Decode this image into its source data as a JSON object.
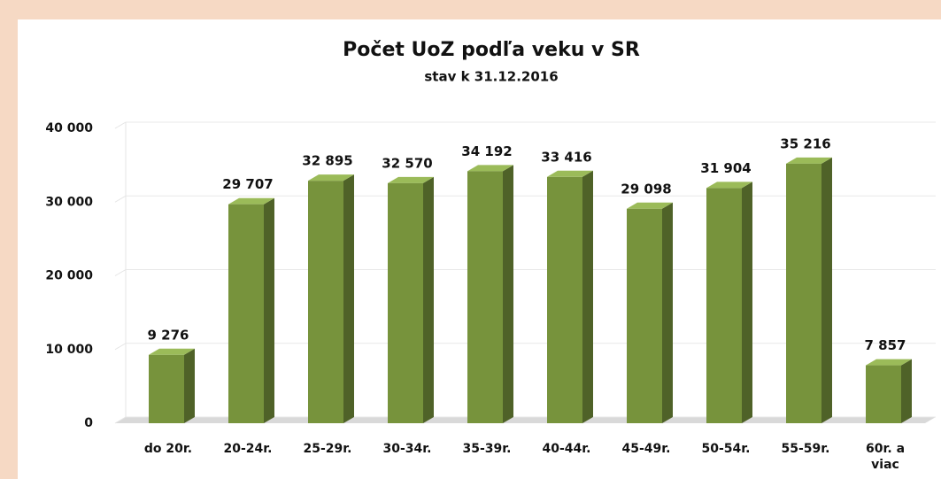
{
  "chart_data": {
    "type": "bar",
    "title": "Počet UoZ podľa veku v SR",
    "subtitle": "stav k 31.12.2016",
    "categories": [
      "do 20r.",
      "20-24r.",
      "25-29r.",
      "30-34r.",
      "35-39r.",
      "40-44r.",
      "45-49r.",
      "50-54r.",
      "55-59r.",
      "60r. a viac"
    ],
    "values": [
      9276,
      29707,
      32895,
      32570,
      34192,
      33416,
      29098,
      31904,
      35216,
      7857
    ],
    "value_labels": [
      "9 276",
      "29 707",
      "32 895",
      "32 570",
      "34 192",
      "33 416",
      "29 098",
      "31 904",
      "35 216",
      "7 857"
    ],
    "color": "#77933c",
    "ylim": [
      0,
      40000
    ],
    "yticks": [
      0,
      {
        "value": 10000,
        "label": "10 000"
      },
      {
        "value": 20000,
        "label": "20 000"
      },
      {
        "value": 30000,
        "label": "30 000"
      },
      {
        "value": 40000,
        "label": "40 000"
      }
    ],
    "grid": true
  }
}
